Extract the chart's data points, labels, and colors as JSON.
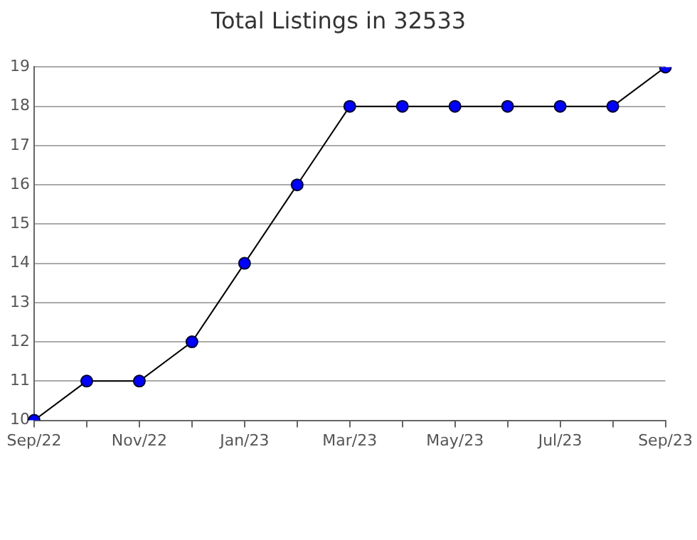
{
  "chart_data": {
    "type": "line",
    "title": "Total Listings in 32533",
    "categories": [
      "Sep/22",
      null,
      "Nov/22",
      null,
      "Jan/23",
      null,
      "Mar/23",
      null,
      "May/23",
      null,
      "Jul/23",
      null,
      "Sep/23"
    ],
    "series": [
      {
        "color": "#0000ff",
        "values": [
          10,
          11,
          11,
          12,
          14,
          16,
          18,
          18,
          18,
          18,
          18,
          18,
          19
        ]
      }
    ],
    "ylim": [
      10,
      19
    ],
    "yticks": [
      10,
      11,
      12,
      13,
      14,
      15,
      16,
      17,
      18,
      19
    ],
    "grid": "y",
    "legend": false,
    "marker": "circle",
    "line_style": "solid"
  }
}
